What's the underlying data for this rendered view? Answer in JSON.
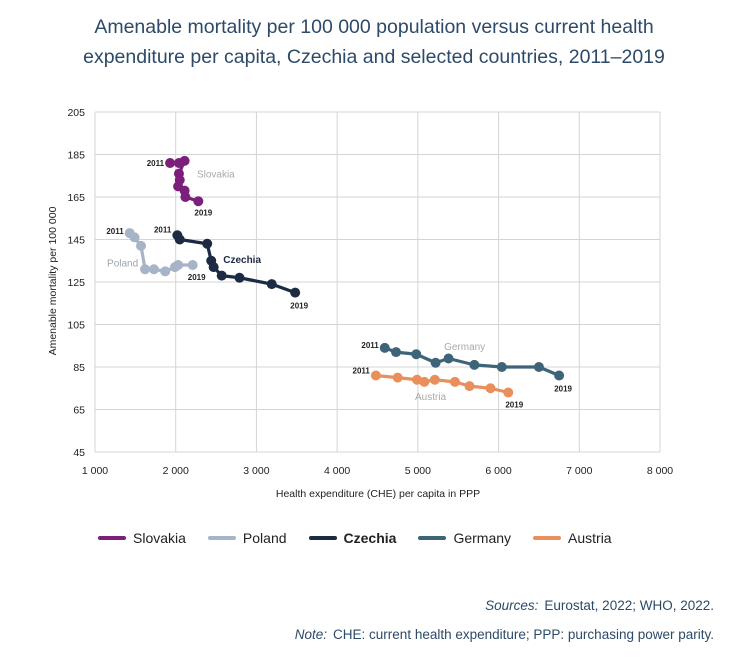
{
  "chart_data": {
    "type": "line",
    "title_lines": [
      "Amenable mortality per 100 000 population versus current health",
      "expenditure per capita, Czechia and selected countries, 2011–2019"
    ],
    "xlabel": "Health expenditure (CHE) per capita in PPP",
    "ylabel": "Amenable mortality per 100 000",
    "xlim": [
      1000,
      8000
    ],
    "ylim": [
      45,
      205
    ],
    "x_ticks": [
      1000,
      2000,
      3000,
      4000,
      5000,
      6000,
      7000,
      8000
    ],
    "x_tick_labels": [
      "1 000",
      "2 000",
      "3 000",
      "4 000",
      "5 000",
      "6 000",
      "7 000",
      "8 000"
    ],
    "y_ticks": [
      45,
      65,
      85,
      105,
      125,
      145,
      165,
      185,
      205
    ],
    "y_tick_labels": [
      "45",
      "65",
      "85",
      "105",
      "125",
      "145",
      "165",
      "185",
      "205"
    ],
    "grid": true,
    "legend_position": "bottom",
    "series": [
      {
        "name": "Slovakia",
        "color": "#7b1f7a",
        "bold": false,
        "show_label": true,
        "x": [
          1930,
          2040,
          2110,
          2040,
          2050,
          2030,
          2110,
          2120,
          2280
        ],
        "y": [
          181,
          181,
          182,
          176,
          173,
          170,
          168,
          165,
          163
        ],
        "start_label": "2011",
        "end_label": "2019"
      },
      {
        "name": "Poland",
        "color": "#a7b3c6",
        "bold": false,
        "show_label": true,
        "x": [
          1430,
          1490,
          1570,
          1620,
          1730,
          1870,
          1990,
          2030,
          2210
        ],
        "y": [
          148,
          146,
          142,
          131,
          131,
          130,
          132,
          133,
          133
        ],
        "start_label": "2011",
        "end_label": "2019"
      },
      {
        "name": "Czechia",
        "color": "#1c2a43",
        "bold": true,
        "show_label": true,
        "x": [
          2020,
          2050,
          2390,
          2440,
          2470,
          2570,
          2790,
          3190,
          3480
        ],
        "y": [
          147,
          145,
          143,
          135,
          132,
          128,
          127,
          124,
          120
        ],
        "start_label": "2011",
        "end_label": "2019"
      },
      {
        "name": "Germany",
        "color": "#3e6479",
        "bold": false,
        "show_label": true,
        "x": [
          4590,
          4730,
          4980,
          5220,
          5380,
          5700,
          6040,
          6500,
          6750
        ],
        "y": [
          94,
          92,
          91,
          87,
          89,
          86,
          85,
          85,
          81
        ],
        "start_label": "2011",
        "end_label": "2019"
      },
      {
        "name": "Austria",
        "color": "#e98f5c",
        "bold": false,
        "show_label": true,
        "x": [
          4480,
          4750,
          4990,
          5080,
          5210,
          5460,
          5640,
          5900,
          6120
        ],
        "y": [
          81,
          80,
          79,
          78,
          79,
          78,
          76,
          75,
          73
        ],
        "start_label": "2011",
        "end_label": "2019"
      }
    ]
  },
  "footer": {
    "sources_label": "Sources:",
    "sources_text": "Eurostat, 2022; WHO, 2022.",
    "note_label": "Note:",
    "note_text": "CHE: current health expenditure; PPP: purchasing power parity."
  }
}
